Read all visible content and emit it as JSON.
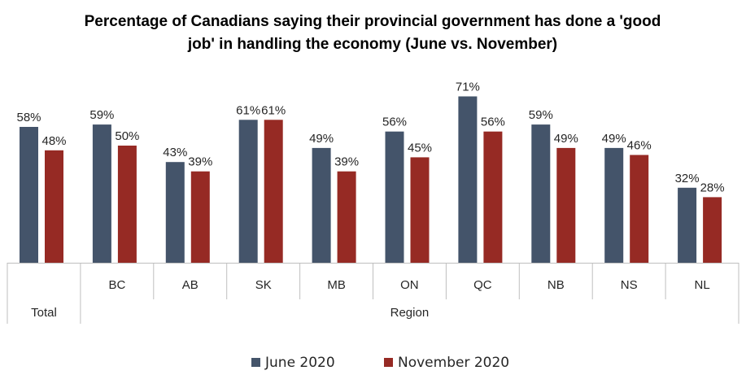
{
  "chart_data": {
    "type": "bar",
    "title_lines": [
      "Percentage of Canadians saying their provincial government has done a 'good",
      "job' in handling the economy (June vs. November)"
    ],
    "categories": [
      "",
      "BC",
      "AB",
      "SK",
      "MB",
      "ON",
      "QC",
      "NB",
      "NS",
      "NL"
    ],
    "groups": [
      {
        "label": "Total",
        "span": [
          0,
          0
        ]
      },
      {
        "label": "Region",
        "span": [
          1,
          9
        ]
      }
    ],
    "series": [
      {
        "name": "June 2020",
        "color": "#44546a",
        "values": [
          58,
          59,
          43,
          61,
          49,
          56,
          71,
          59,
          49,
          32
        ],
        "labels": [
          "58%",
          "59%",
          "43%",
          "61%",
          "49%",
          "56%",
          "71%",
          "59%",
          "49%",
          "32%"
        ]
      },
      {
        "name": "November 2020",
        "color": "#962a24",
        "values": [
          48,
          50,
          39,
          61,
          39,
          45,
          56,
          49,
          46,
          28
        ],
        "labels": [
          "48%",
          "50%",
          "39%",
          "61%",
          "39%",
          "45%",
          "56%",
          "49%",
          "46%",
          "28%"
        ]
      }
    ],
    "ylim": [
      0,
      100
    ],
    "grid": false,
    "legend_position": "bottom"
  }
}
